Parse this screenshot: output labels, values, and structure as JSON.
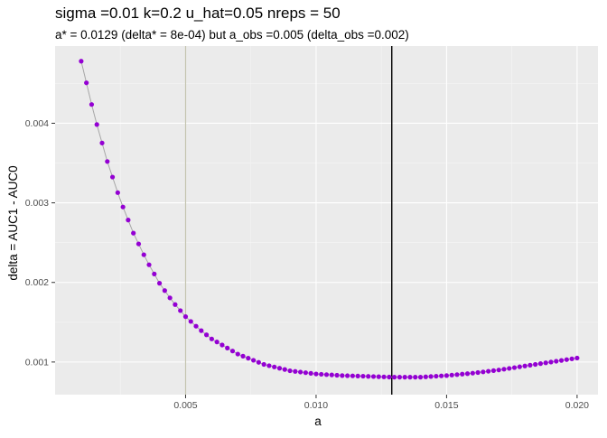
{
  "chart_data": {
    "type": "scatter",
    "title": "sigma =0.01  k=0.2  u_hat=0.05  nreps = 50",
    "subtitle": "a* = 0.0129 (delta* = 8e-04) but a_obs =0.005 (delta_obs =0.002)",
    "xlabel": "a",
    "ylabel": "delta = AUC1 - AUC0",
    "xlim": [
      0.0,
      0.0208
    ],
    "ylim": [
      0.00059,
      0.00497
    ],
    "x_ticks": [
      0.005,
      0.01,
      0.015,
      0.02
    ],
    "x_tick_labels": [
      "0.005",
      "0.010",
      "0.015",
      "0.020"
    ],
    "y_ticks": [
      0.001,
      0.002,
      0.003,
      0.004
    ],
    "y_tick_labels": [
      "0.001",
      "0.002",
      "0.003",
      "0.004"
    ],
    "grid": true,
    "legend": "none",
    "series": [
      {
        "x_start": 0.001,
        "x_end": 0.02,
        "x_step": 0.0002,
        "curve_knots": [
          [
            0.001,
            0.00478
          ],
          [
            0.0015,
            0.0041
          ],
          [
            0.002,
            0.00352
          ],
          [
            0.0025,
            0.00303
          ],
          [
            0.003,
            0.00262
          ],
          [
            0.0035,
            0.00228
          ],
          [
            0.004,
            0.00199
          ],
          [
            0.0045,
            0.00176
          ],
          [
            0.005,
            0.00157
          ],
          [
            0.0055,
            0.00142
          ],
          [
            0.006,
            0.00129
          ],
          [
            0.007,
            0.0011
          ],
          [
            0.008,
            0.00097
          ],
          [
            0.009,
            0.00089
          ],
          [
            0.01,
            0.00085
          ],
          [
            0.011,
            0.00083
          ],
          [
            0.012,
            0.00082
          ],
          [
            0.0129,
            0.00081
          ],
          [
            0.014,
            0.00081
          ],
          [
            0.015,
            0.00083
          ],
          [
            0.016,
            0.00086
          ],
          [
            0.017,
            0.0009
          ],
          [
            0.018,
            0.00095
          ],
          [
            0.019,
            0.001
          ],
          [
            0.02,
            0.00105
          ]
        ],
        "point_color": "#9400d3",
        "line_color": "#a6a6a6"
      }
    ],
    "vlines": [
      {
        "x": 0.005,
        "color": "#c4c4b0"
      },
      {
        "x": 0.0129,
        "color": "#000000"
      }
    ]
  },
  "colors": {
    "panel_background": "#ebebeb",
    "grid_major": "#ffffff",
    "tick_color": "#333333"
  }
}
